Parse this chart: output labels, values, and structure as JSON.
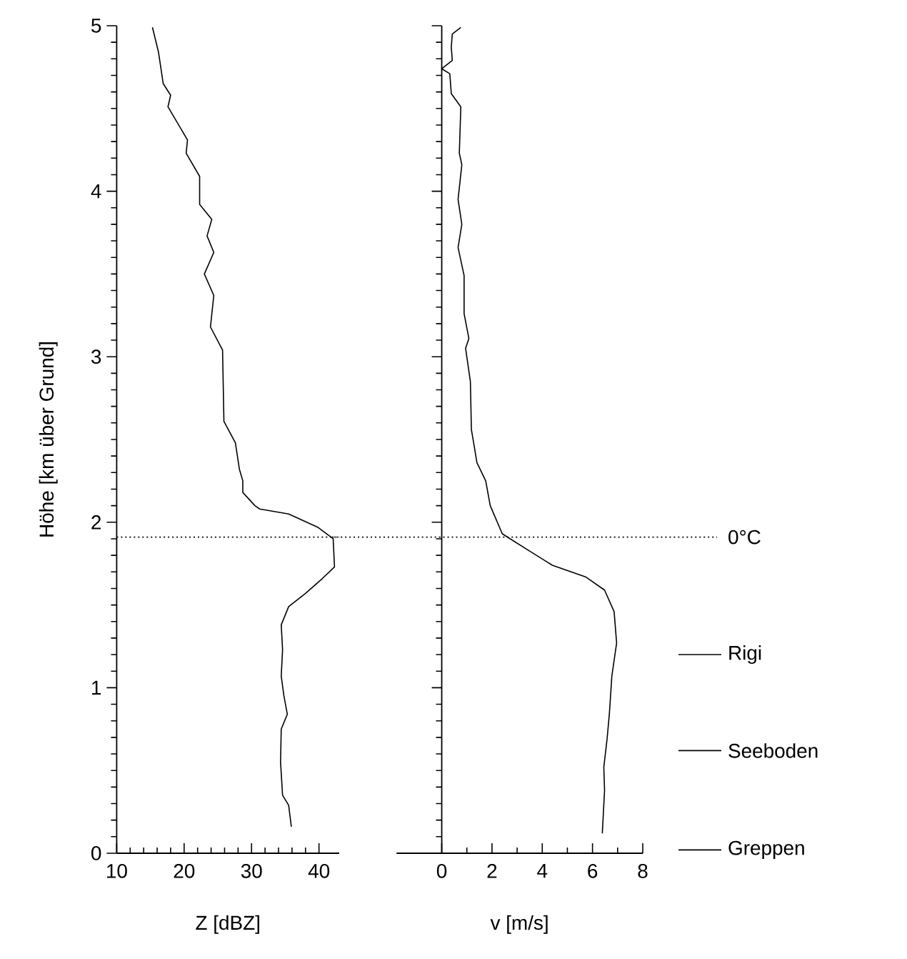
{
  "chart_data": [
    {
      "type": "line",
      "xlabel": "Z [dBZ]",
      "ylabel": "Höhe [km über Grund]",
      "xlim": [
        10,
        43
      ],
      "ylim": [
        0,
        5
      ],
      "xticks": [
        10,
        20,
        30,
        40
      ],
      "yticks": [
        0,
        1,
        2,
        3,
        4,
        5
      ],
      "series": [
        {
          "color": "#000000",
          "x": [
            15.3,
            16.2,
            16.9,
            18.0,
            17.6,
            20.5,
            20.3,
            22.3,
            22.3,
            24.1,
            23.4,
            24.4,
            23.0,
            24.4,
            23.9,
            25.7,
            25.9,
            27.6,
            28.2,
            28.7,
            28.7,
            30.5,
            31.2,
            35.5,
            39.8,
            42.1,
            42.3,
            40.5,
            38.0,
            35.5,
            34.4,
            34.6,
            34.4,
            34.8,
            35.3,
            34.4,
            34.3,
            34.6,
            35.5,
            35.9
          ],
          "values": [
            4.99,
            4.84,
            4.65,
            4.58,
            4.51,
            4.31,
            4.23,
            4.09,
            3.92,
            3.83,
            3.73,
            3.63,
            3.5,
            3.37,
            3.18,
            3.04,
            2.61,
            2.48,
            2.32,
            2.25,
            2.18,
            2.1,
            2.08,
            2.05,
            1.97,
            1.9,
            1.73,
            1.66,
            1.57,
            1.49,
            1.38,
            1.23,
            1.07,
            0.95,
            0.84,
            0.75,
            0.55,
            0.35,
            0.29,
            0.16
          ]
        }
      ],
      "ref_lines": [
        {
          "axis": "y",
          "value": 1.91,
          "line_style": "dotted"
        }
      ]
    },
    {
      "type": "line",
      "xlabel": "v [m/s]",
      "xlim": [
        -1.8,
        8
      ],
      "ylim": [
        0,
        5
      ],
      "xticks": [
        0,
        2,
        4,
        6,
        8
      ],
      "yticks": [
        0,
        1,
        2,
        3,
        4,
        5
      ],
      "tick_labels": "x",
      "series": [
        {
          "color": "#000000",
          "x": [
            0.76,
            0.42,
            0.38,
            0.42,
            0.0,
            0.32,
            0.38,
            0.76,
            0.7,
            0.8,
            0.65,
            0.8,
            0.65,
            0.89,
            0.89,
            1.08,
            0.95,
            1.14,
            1.18,
            1.27,
            1.4,
            1.75,
            1.93,
            2.41,
            3.45,
            4.4,
            5.72,
            6.48,
            6.86,
            6.96,
            6.77,
            6.67,
            6.58,
            6.45,
            6.48,
            6.39
          ],
          "values": [
            4.99,
            4.95,
            4.87,
            4.79,
            4.74,
            4.71,
            4.59,
            4.51,
            4.23,
            4.16,
            3.95,
            3.8,
            3.66,
            3.49,
            3.26,
            3.11,
            3.05,
            2.85,
            2.56,
            2.48,
            2.36,
            2.25,
            2.1,
            1.93,
            1.83,
            1.74,
            1.67,
            1.59,
            1.46,
            1.27,
            1.07,
            0.84,
            0.69,
            0.52,
            0.38,
            0.12
          ]
        }
      ],
      "ref_lines": [
        {
          "axis": "y",
          "value": 1.91,
          "label": "0°C",
          "line_style": "dotted"
        },
        {
          "axis": "y",
          "value": 1.2,
          "label": "Rigi",
          "line_style": "solid"
        },
        {
          "axis": "y",
          "value": 0.62,
          "label": "Seeboden",
          "line_style": "solid"
        },
        {
          "axis": "y",
          "value": 0.02,
          "label": "Greppen",
          "line_style": "solid"
        }
      ]
    }
  ]
}
